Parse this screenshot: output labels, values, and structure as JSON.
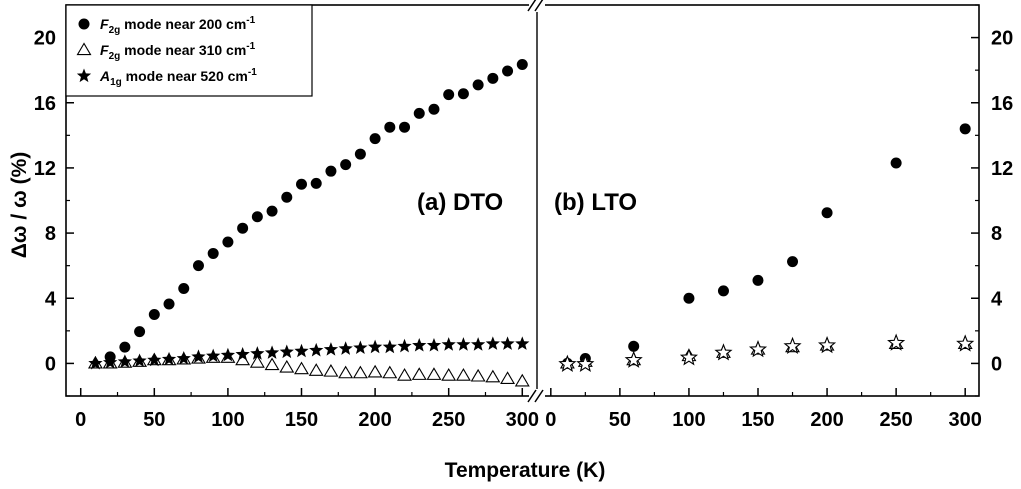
{
  "chart_data": [
    {
      "type": "scatter",
      "panel_label": "(a) DTO",
      "xlabel": "Temperature (K)",
      "ylabel": "Δω / ω (%)",
      "xlim": [
        -10,
        310
      ],
      "ylim": [
        -2,
        22
      ],
      "xticks": [
        0,
        50,
        100,
        150,
        200,
        250,
        300
      ],
      "yticks": [
        0,
        4,
        8,
        12,
        16,
        20
      ],
      "legend_position": "top-left",
      "series": [
        {
          "name": "F2g mode near 200 cm-1",
          "legend": {
            "sym": "F",
            "sub": "2g",
            "text": " mode near 200 cm",
            "sup": "-1"
          },
          "marker": "filled-circle",
          "points": [
            [
              20,
              0.4
            ],
            [
              30,
              1.0
            ],
            [
              40,
              1.95
            ],
            [
              50,
              3.0
            ],
            [
              60,
              3.65
            ],
            [
              70,
              4.6
            ],
            [
              80,
              6.0
            ],
            [
              90,
              6.75
            ],
            [
              100,
              7.45
            ],
            [
              110,
              8.3
            ],
            [
              120,
              9.0
            ],
            [
              130,
              9.35
            ],
            [
              140,
              10.2
            ],
            [
              150,
              11.0
            ],
            [
              160,
              11.05
            ],
            [
              170,
              11.8
            ],
            [
              180,
              12.2
            ],
            [
              190,
              12.85
            ],
            [
              200,
              13.8
            ],
            [
              210,
              14.5
            ],
            [
              220,
              14.5
            ],
            [
              230,
              15.35
            ],
            [
              240,
              15.6
            ],
            [
              250,
              16.5
            ],
            [
              260,
              16.55
            ],
            [
              270,
              17.1
            ],
            [
              280,
              17.5
            ],
            [
              290,
              17.95
            ],
            [
              300,
              18.35
            ]
          ]
        },
        {
          "name": "F2g mode near 310 cm-1",
          "legend": {
            "sym": "F",
            "sub": "2g",
            "text": " mode near 310 cm",
            "sup": "-1"
          },
          "marker": "open-triangle",
          "points": [
            [
              10,
              0.0
            ],
            [
              20,
              0.0
            ],
            [
              30,
              0.05
            ],
            [
              40,
              0.1
            ],
            [
              50,
              0.2
            ],
            [
              60,
              0.2
            ],
            [
              70,
              0.25
            ],
            [
              80,
              0.3
            ],
            [
              90,
              0.35
            ],
            [
              100,
              0.35
            ],
            [
              110,
              0.2
            ],
            [
              120,
              0.05
            ],
            [
              130,
              -0.1
            ],
            [
              140,
              -0.25
            ],
            [
              150,
              -0.35
            ],
            [
              160,
              -0.45
            ],
            [
              170,
              -0.5
            ],
            [
              180,
              -0.6
            ],
            [
              190,
              -0.6
            ],
            [
              200,
              -0.55
            ],
            [
              210,
              -0.6
            ],
            [
              220,
              -0.75
            ],
            [
              230,
              -0.7
            ],
            [
              240,
              -0.7
            ],
            [
              250,
              -0.75
            ],
            [
              260,
              -0.75
            ],
            [
              270,
              -0.8
            ],
            [
              280,
              -0.85
            ],
            [
              290,
              -0.95
            ],
            [
              300,
              -1.1
            ]
          ]
        },
        {
          "name": "A1g mode near 520 cm-1",
          "legend": {
            "sym": "A",
            "sub": "1g",
            "text": " mode near 520 cm",
            "sup": "-1"
          },
          "marker": "filled-star",
          "points": [
            [
              10,
              0.0
            ],
            [
              20,
              0.05
            ],
            [
              30,
              0.1
            ],
            [
              40,
              0.15
            ],
            [
              50,
              0.2
            ],
            [
              60,
              0.25
            ],
            [
              70,
              0.3
            ],
            [
              80,
              0.4
            ],
            [
              90,
              0.45
            ],
            [
              100,
              0.5
            ],
            [
              110,
              0.55
            ],
            [
              120,
              0.6
            ],
            [
              130,
              0.65
            ],
            [
              140,
              0.7
            ],
            [
              150,
              0.75
            ],
            [
              160,
              0.8
            ],
            [
              170,
              0.85
            ],
            [
              180,
              0.9
            ],
            [
              190,
              0.95
            ],
            [
              200,
              1.0
            ],
            [
              210,
              1.0
            ],
            [
              220,
              1.05
            ],
            [
              230,
              1.1
            ],
            [
              240,
              1.1
            ],
            [
              250,
              1.15
            ],
            [
              260,
              1.15
            ],
            [
              270,
              1.15
            ],
            [
              280,
              1.2
            ],
            [
              290,
              1.2
            ],
            [
              300,
              1.2
            ]
          ]
        }
      ]
    },
    {
      "type": "scatter",
      "panel_label": "(b) LTO",
      "xlabel": "Temperature (K)",
      "ylabel": "",
      "xlim": [
        -10,
        310
      ],
      "ylim": [
        -2,
        22
      ],
      "xticks": [
        0,
        50,
        100,
        150,
        200,
        250,
        300
      ],
      "yticks": [
        0,
        4,
        8,
        12,
        16,
        20
      ],
      "series": [
        {
          "name": "F2g mode near 200 cm-1",
          "marker": "filled-circle",
          "points": [
            [
              12,
              0.0
            ],
            [
              25,
              0.3
            ],
            [
              60,
              1.05
            ],
            [
              100,
              4.0
            ],
            [
              125,
              4.45
            ],
            [
              150,
              5.1
            ],
            [
              175,
              6.25
            ],
            [
              200,
              9.25
            ],
            [
              250,
              12.3
            ],
            [
              300,
              14.4
            ]
          ]
        },
        {
          "name": "F2g mode near 310 cm-1",
          "marker": "open-triangle",
          "points": [
            [
              12,
              0.0
            ],
            [
              25,
              0.1
            ],
            [
              60,
              0.2
            ],
            [
              100,
              0.45
            ],
            [
              125,
              0.65
            ],
            [
              150,
              0.85
            ],
            [
              175,
              1.0
            ],
            [
              200,
              1.1
            ],
            [
              250,
              1.2
            ],
            [
              300,
              1.2
            ]
          ]
        },
        {
          "name": "A1g mode near 520 cm-1",
          "marker": "open-star",
          "points": [
            [
              12,
              -0.05
            ],
            [
              25,
              -0.05
            ],
            [
              60,
              0.2
            ],
            [
              100,
              0.35
            ],
            [
              125,
              0.65
            ],
            [
              150,
              0.85
            ],
            [
              175,
              1.05
            ],
            [
              200,
              1.1
            ],
            [
              250,
              1.25
            ],
            [
              300,
              1.2
            ]
          ]
        }
      ]
    }
  ]
}
